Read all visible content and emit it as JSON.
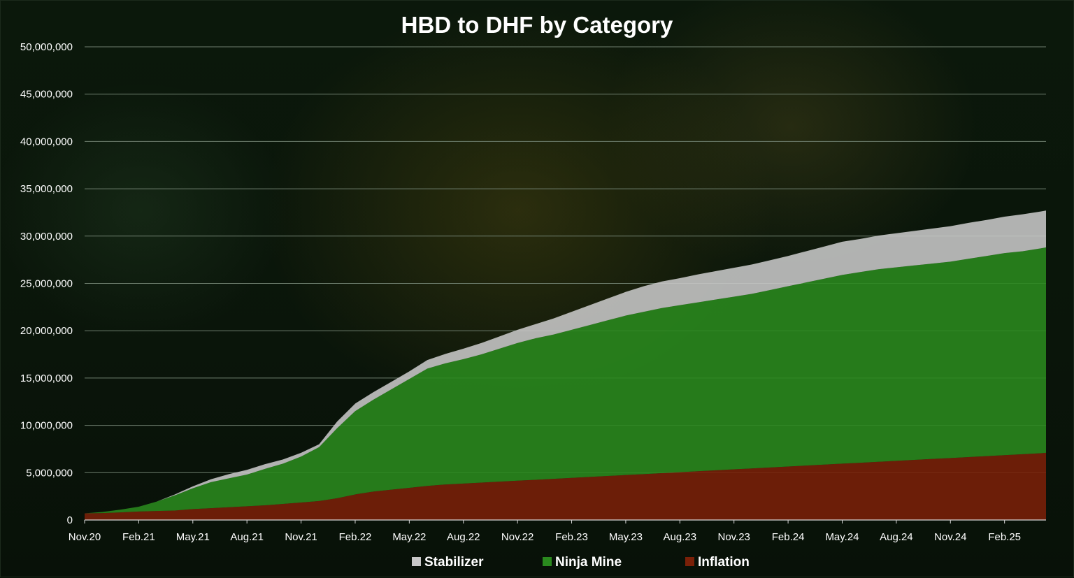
{
  "chart_data": {
    "type": "area",
    "stacked": true,
    "title": "HBD to DHF by Category",
    "xlabel": "",
    "ylabel": "",
    "ylim": [
      0,
      50000000
    ],
    "y_ticks": [
      0,
      5000000,
      10000000,
      15000000,
      20000000,
      25000000,
      30000000,
      35000000,
      40000000,
      45000000,
      50000000
    ],
    "y_tick_labels": [
      "0",
      "5,000,000",
      "10,000,000",
      "15,000,000",
      "20,000,000",
      "25,000,000",
      "30,000,000",
      "35,000,000",
      "40,000,000",
      "45,000,000",
      "50,000,000"
    ],
    "x_tick_labels": [
      "Nov.20",
      "Feb.21",
      "May.21",
      "Aug.21",
      "Nov.21",
      "Feb.22",
      "May.22",
      "Aug.22",
      "Nov.22",
      "Feb.23",
      "May.23",
      "Aug.23",
      "Nov.23",
      "Feb.24",
      "May.24",
      "Aug.24",
      "Nov.24",
      "Feb.25"
    ],
    "x_range_months": [
      0,
      53.3
    ],
    "grid": true,
    "legend_position": "bottom",
    "x": [
      0,
      1,
      2,
      3,
      4,
      5,
      6,
      7,
      8,
      9,
      10,
      11,
      12,
      13,
      14,
      15,
      16,
      17,
      18,
      19,
      20,
      21,
      22,
      23,
      24,
      25,
      26,
      27,
      28,
      29,
      30,
      31,
      32,
      33,
      34,
      35,
      36,
      37,
      38,
      39,
      40,
      41,
      42,
      43,
      44,
      45,
      46,
      47,
      48,
      49,
      50,
      51,
      52,
      53,
      53.3
    ],
    "series": [
      {
        "name": "Inflation",
        "color": "#7a2008",
        "values": [
          700000,
          730000,
          800000,
          900000,
          950000,
          1000000,
          1150000,
          1250000,
          1350000,
          1450000,
          1550000,
          1700000,
          1850000,
          2000000,
          2300000,
          2700000,
          3000000,
          3200000,
          3400000,
          3600000,
          3750000,
          3850000,
          3950000,
          4050000,
          4150000,
          4250000,
          4350000,
          4450000,
          4550000,
          4650000,
          4750000,
          4850000,
          4950000,
          5050000,
          5150000,
          5250000,
          5350000,
          5450000,
          5550000,
          5650000,
          5750000,
          5850000,
          5950000,
          6050000,
          6150000,
          6250000,
          6350000,
          6450000,
          6550000,
          6650000,
          6750000,
          6850000,
          6950000,
          7050000,
          7100000
        ]
      },
      {
        "name": "Ninja Mine",
        "color": "#2a8a1e",
        "values": [
          0,
          120000,
          300000,
          500000,
          1000000,
          1600000,
          2200000,
          2750000,
          3050000,
          3350000,
          3850000,
          4250000,
          4850000,
          5700000,
          7400000,
          8800000,
          9700000,
          10600000,
          11500000,
          12400000,
          12800000,
          13150000,
          13550000,
          14050000,
          14550000,
          14950000,
          15250000,
          15650000,
          16050000,
          16450000,
          16850000,
          17150000,
          17450000,
          17650000,
          17850000,
          18050000,
          18250000,
          18450000,
          18750000,
          19050000,
          19350000,
          19650000,
          19950000,
          20150000,
          20350000,
          20450000,
          20550000,
          20650000,
          20750000,
          20950000,
          21150000,
          21350000,
          21450000,
          21650000,
          21700000
        ]
      },
      {
        "name": "Stabilizer",
        "color": "#c8c8c8",
        "values": [
          0,
          0,
          0,
          0,
          0,
          100000,
          200000,
          300000,
          450000,
          500000,
          500000,
          450000,
          400000,
          300000,
          700000,
          800000,
          800000,
          800000,
          800000,
          900000,
          1000000,
          1100000,
          1200000,
          1300000,
          1400000,
          1500000,
          1700000,
          1900000,
          2100000,
          2300000,
          2500000,
          2700000,
          2800000,
          2850000,
          2950000,
          3000000,
          3050000,
          3100000,
          3150000,
          3200000,
          3300000,
          3400000,
          3500000,
          3500000,
          3550000,
          3600000,
          3650000,
          3700000,
          3750000,
          3800000,
          3800000,
          3850000,
          3900000,
          3900000,
          3900000
        ]
      }
    ]
  }
}
